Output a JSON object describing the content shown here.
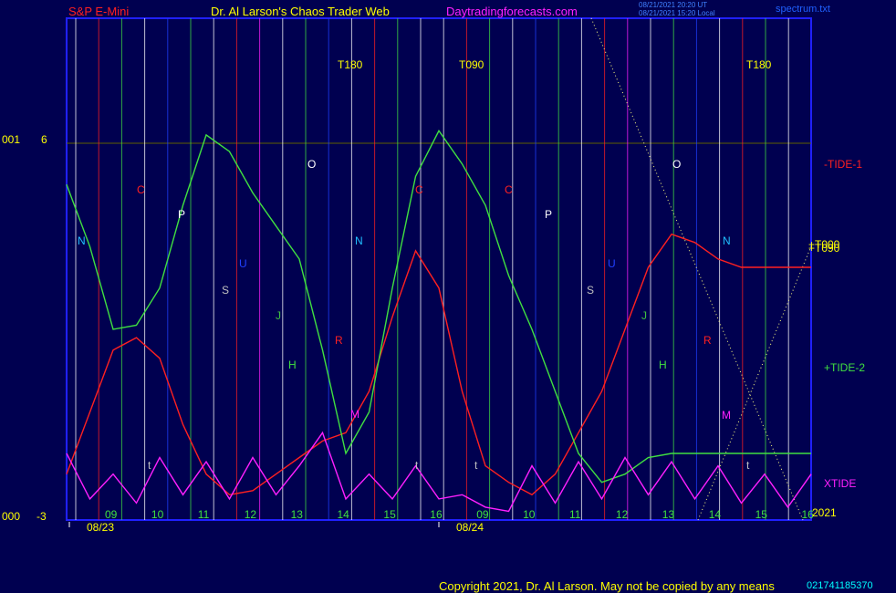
{
  "header": {
    "symbol": "S&P E-Mini",
    "author": "Dr. Al Larson's Chaos Trader Web",
    "site": "Daytradingforecasts.com",
    "stamp1": "08/21/2021 20:20 UT",
    "stamp2": "08/21/2021 15:20 Local",
    "file": "spectrum.txt"
  },
  "footer": {
    "copyright": "Copyright 2021, Dr. Al Larson. May not be copied by any means",
    "serial": "021741185370"
  },
  "colors": {
    "background": "#000050",
    "frame": "#2020ff",
    "tide1": "#ff2020",
    "tide2": "#40e040",
    "xtide": "#ff20ff",
    "text_yellow": "#ffff00"
  },
  "chart_data": {
    "type": "line",
    "title": "S&P E-Mini",
    "y_axis_labels": [
      {
        "left": "001",
        "right": "6"
      },
      {
        "left": "000",
        "right": "-3"
      }
    ],
    "ylim": [
      -3,
      6
    ],
    "dates": [
      "08/23",
      "08/24"
    ],
    "hour_labels": [
      "09",
      "10",
      "11",
      "12",
      "13",
      "14",
      "15",
      "16",
      "09",
      "10",
      "11",
      "12",
      "13",
      "14",
      "15",
      "16"
    ],
    "year_label": "2021",
    "series": [
      {
        "name": "-TIDE-1",
        "color": "#ff2020",
        "x": [
          0,
          0.5,
          1,
          1.5,
          2,
          2.5,
          3,
          3.5,
          4,
          4.5,
          5,
          5.5,
          6,
          6.5,
          7,
          7.5,
          8,
          8.5,
          9,
          9.5,
          10,
          10.5,
          11,
          11.5,
          12,
          12.5,
          13,
          13.5,
          14,
          14.5,
          15,
          15.5,
          16
        ],
        "y": [
          -2.0,
          -0.5,
          1.0,
          1.3,
          0.8,
          -0.8,
          -2.0,
          -2.5,
          -2.4,
          -2.0,
          -1.6,
          -1.2,
          -1.0,
          0.0,
          1.8,
          3.4,
          2.5,
          0.0,
          -1.8,
          -2.2,
          -2.5,
          -2.0,
          -1.0,
          0.0,
          1.5,
          3.0,
          3.8,
          3.6,
          3.2,
          3.0,
          3.0,
          3.0,
          3.0
        ]
      },
      {
        "name": "+TIDE-2",
        "color": "#40e040",
        "x": [
          0,
          0.5,
          1,
          1.5,
          2,
          2.5,
          3,
          3.5,
          4,
          4.5,
          5,
          5.5,
          6,
          6.5,
          7,
          7.5,
          8,
          8.5,
          9,
          9.5,
          10,
          10.5,
          11,
          11.5,
          12,
          12.5,
          13,
          13.5,
          14,
          14.5,
          15,
          15.5,
          16
        ],
        "y": [
          5.0,
          3.5,
          1.5,
          1.6,
          2.5,
          4.5,
          6.2,
          5.8,
          4.8,
          4.0,
          3.2,
          1.0,
          -1.5,
          -0.5,
          2.5,
          5.2,
          6.3,
          5.5,
          4.5,
          2.8,
          1.5,
          0.0,
          -1.5,
          -2.2,
          -2.0,
          -1.6,
          -1.5,
          -1.5,
          -1.5,
          -1.5,
          -1.5,
          -1.5,
          -1.5
        ]
      },
      {
        "name": "XTIDE",
        "color": "#ff20ff",
        "x": [
          0,
          0.5,
          1,
          1.5,
          2,
          2.5,
          3,
          3.5,
          4,
          4.5,
          5,
          5.5,
          6,
          6.5,
          7,
          7.5,
          8,
          8.5,
          9,
          9.5,
          10,
          10.5,
          11,
          11.5,
          12,
          12.5,
          13,
          13.5,
          14,
          14.5,
          15,
          15.5,
          16
        ],
        "y": [
          -1.5,
          -2.6,
          -2.0,
          -2.7,
          -1.6,
          -2.5,
          -1.7,
          -2.6,
          -1.6,
          -2.5,
          -1.8,
          -1.0,
          -2.6,
          -2.0,
          -2.6,
          -1.8,
          -2.6,
          -2.5,
          -2.8,
          -2.9,
          -1.8,
          -2.7,
          -1.7,
          -2.6,
          -1.6,
          -2.5,
          -1.7,
          -2.6,
          -1.8,
          -2.7,
          -2.0,
          -2.8,
          -2.0
        ]
      }
    ],
    "right_labels": [
      {
        "text": "-TIDE-1",
        "color": "#ff2020"
      },
      {
        "text": "+T090",
        "color": "#ffff00"
      },
      {
        "text": "+T000",
        "color": "#ffff00"
      },
      {
        "text": "+TIDE-2",
        "color": "#40e040"
      },
      {
        "text": "XTIDE",
        "color": "#ff20ff"
      }
    ],
    "top_markers": [
      "T180",
      "T090",
      "T180"
    ],
    "planet_letters": [
      {
        "text": "N",
        "color": "#20c0ff"
      },
      {
        "text": "C",
        "color": "#ff2020"
      },
      {
        "text": "P",
        "color": "#ffffff"
      },
      {
        "text": "U",
        "color": "#2040ff"
      },
      {
        "text": "S",
        "color": "#c0c0c0"
      },
      {
        "text": "J",
        "color": "#40c040"
      },
      {
        "text": "H",
        "color": "#40e040"
      },
      {
        "text": "O",
        "color": "#ffffff"
      },
      {
        "text": "R",
        "color": "#ff2020"
      },
      {
        "text": "M",
        "color": "#ff20ff"
      },
      {
        "text": "t",
        "color": "#c0c0c0"
      },
      {
        "text": "C",
        "color": "#ff2020"
      },
      {
        "text": "P",
        "color": "#ffffff"
      },
      {
        "text": "U",
        "color": "#2040ff"
      },
      {
        "text": "S",
        "color": "#c0c0c0"
      },
      {
        "text": "J",
        "color": "#40c040"
      },
      {
        "text": "H",
        "color": "#40e040"
      },
      {
        "text": "O",
        "color": "#ffffff"
      },
      {
        "text": "R",
        "color": "#ff2020"
      },
      {
        "text": "N",
        "color": "#20c0ff"
      },
      {
        "text": "M",
        "color": "#ff20ff"
      },
      {
        "text": "C",
        "color": "#ff2020"
      },
      {
        "text": "N",
        "color": "#20c0ff"
      },
      {
        "text": "t",
        "color": "#c0c0c0"
      },
      {
        "text": "t",
        "color": "#c0c0c0"
      },
      {
        "text": "t",
        "color": "#c0c0c0"
      }
    ]
  }
}
